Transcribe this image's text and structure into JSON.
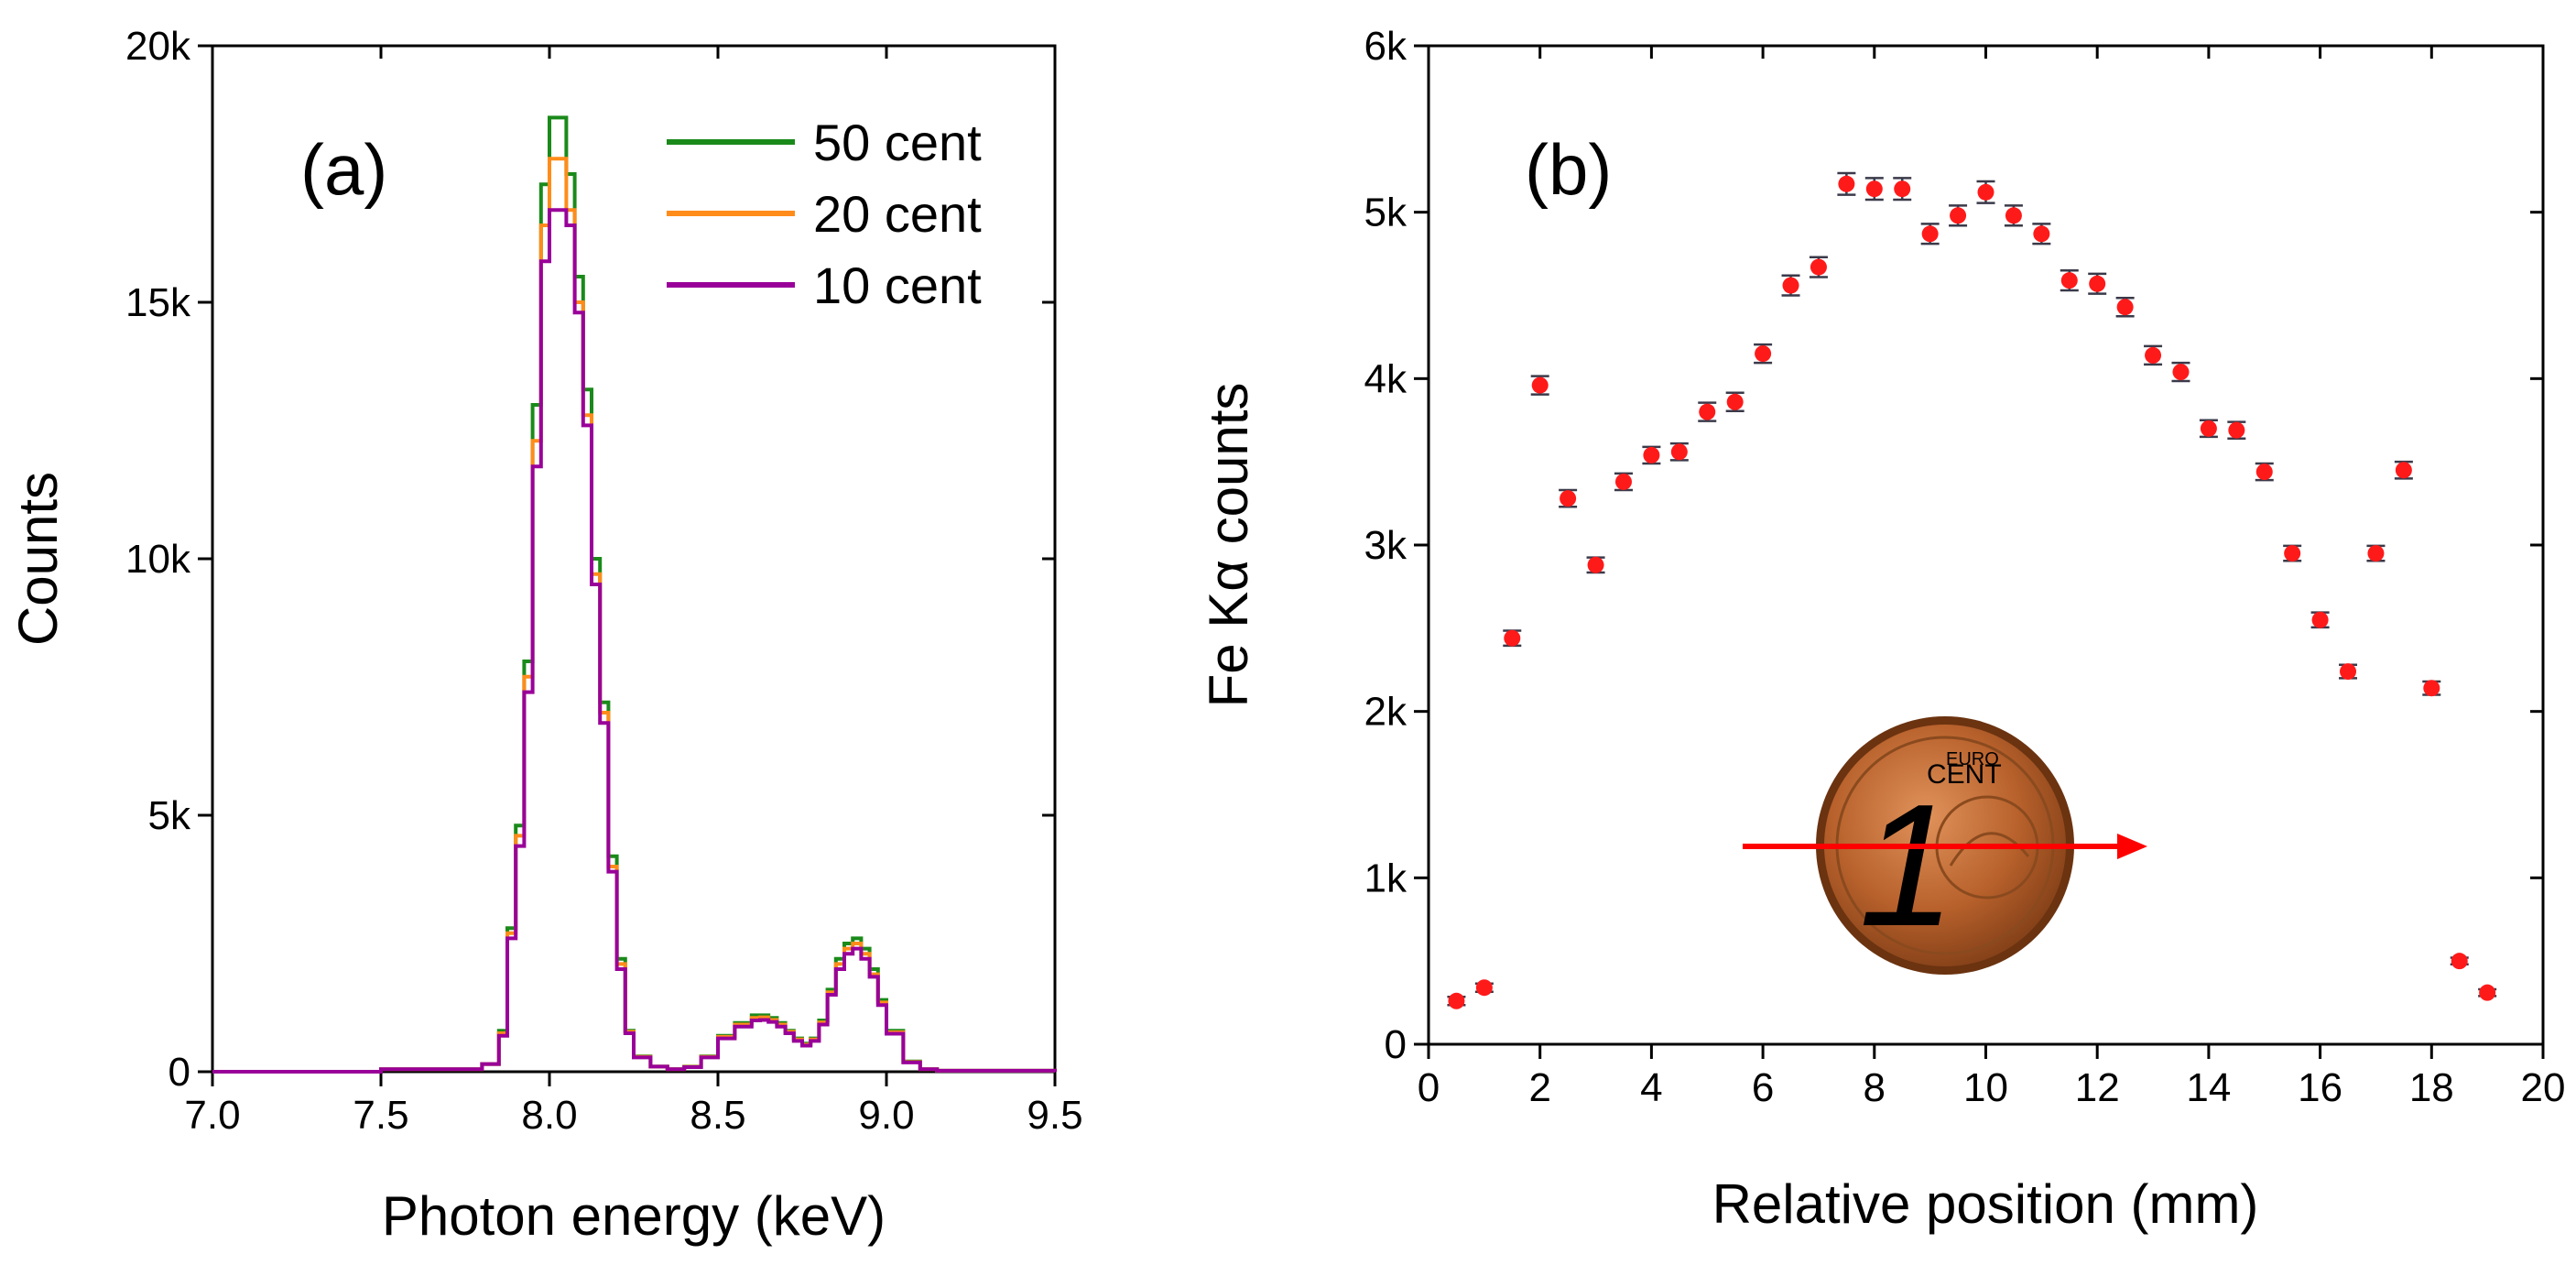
{
  "chart_data": [
    {
      "panel": "(a)",
      "type": "line",
      "step": true,
      "xlabel": "Photon energy (keV)",
      "ylabel": "Counts",
      "xlim": [
        7.0,
        9.5
      ],
      "ylim": [
        0,
        20000
      ],
      "xticks": [
        7.0,
        7.5,
        8.0,
        8.5,
        9.0,
        9.5
      ],
      "xtick_labels": [
        "7.0",
        "7.5",
        "8.0",
        "8.5",
        "9.0",
        "9.5"
      ],
      "yticks": [
        0,
        5000,
        10000,
        15000,
        20000
      ],
      "ytick_labels": [
        "0",
        "5k",
        "10k",
        "15k",
        "20k"
      ],
      "legend_position": "top-right",
      "x": [
        7.0,
        7.5,
        7.8,
        7.85,
        7.875,
        7.9,
        7.925,
        7.95,
        7.975,
        8.0,
        8.025,
        8.05,
        8.075,
        8.1,
        8.125,
        8.15,
        8.175,
        8.2,
        8.225,
        8.25,
        8.3,
        8.35,
        8.4,
        8.45,
        8.5,
        8.55,
        8.6,
        8.625,
        8.65,
        8.675,
        8.7,
        8.725,
        8.75,
        8.775,
        8.8,
        8.825,
        8.85,
        8.875,
        8.9,
        8.925,
        8.95,
        8.975,
        9.0,
        9.05,
        9.1,
        9.15,
        9.5
      ],
      "series": [
        {
          "name": "50 cent",
          "color": "#1a8a1a",
          "values": [
            0,
            50,
            150,
            800,
            2800,
            4800,
            8000,
            13000,
            17300,
            18600,
            18600,
            17500,
            15500,
            13300,
            10000,
            7200,
            4200,
            2200,
            800,
            300,
            100,
            50,
            100,
            300,
            700,
            950,
            1100,
            1100,
            1050,
            950,
            800,
            650,
            550,
            650,
            1000,
            1600,
            2200,
            2500,
            2600,
            2400,
            2000,
            1400,
            800,
            200,
            50,
            20,
            0
          ]
        },
        {
          "name": "20 cent",
          "color": "#ff8c1a",
          "values": [
            0,
            50,
            150,
            750,
            2700,
            4600,
            7700,
            12300,
            16500,
            17800,
            17800,
            16800,
            15000,
            12800,
            9700,
            7000,
            4000,
            2100,
            780,
            290,
            100,
            50,
            95,
            290,
            680,
            920,
            1050,
            1060,
            1010,
            920,
            780,
            630,
            530,
            630,
            960,
            1550,
            2100,
            2400,
            2500,
            2300,
            1900,
            1350,
            770,
            190,
            50,
            20,
            0
          ]
        },
        {
          "name": "10 cent",
          "color": "#990099",
          "values": [
            0,
            50,
            150,
            700,
            2600,
            4400,
            7400,
            11800,
            15800,
            16800,
            16800,
            16500,
            14800,
            12600,
            9500,
            6800,
            3900,
            2000,
            750,
            280,
            100,
            50,
            90,
            280,
            650,
            880,
            1000,
            1010,
            970,
            880,
            750,
            600,
            510,
            600,
            920,
            1500,
            2000,
            2300,
            2400,
            2200,
            1850,
            1300,
            740,
            180,
            50,
            20,
            0
          ]
        }
      ]
    },
    {
      "panel": "(b)",
      "type": "scatter",
      "error_bars": true,
      "xlabel": "Relative position (mm)",
      "ylabel": "Fe Kα counts",
      "xlim": [
        0,
        20
      ],
      "ylim": [
        0,
        6000
      ],
      "xticks": [
        0,
        2,
        4,
        6,
        8,
        10,
        12,
        14,
        16,
        18,
        20
      ],
      "xtick_labels": [
        "0",
        "2",
        "4",
        "6",
        "8",
        "10",
        "12",
        "14",
        "16",
        "18",
        "20"
      ],
      "yticks": [
        0,
        1000,
        2000,
        3000,
        4000,
        5000,
        6000
      ],
      "ytick_labels": [
        "0",
        "1k",
        "2k",
        "3k",
        "4k",
        "5k",
        "6k"
      ],
      "marker_color": "#ff1a1a",
      "errorbar_color": "#3a3a4a",
      "annotation": "euro coin photo with red arrow (left to right)",
      "coin_text": {
        "top": "EURO",
        "middle": "CENT",
        "numeral": "1"
      },
      "x": [
        0.5,
        1,
        1.5,
        2,
        2.5,
        3,
        3.5,
        4,
        4.5,
        5,
        5.5,
        6,
        6.5,
        7,
        7.5,
        8,
        8.5,
        9,
        9.5,
        10,
        10.5,
        11,
        11.5,
        12,
        12.5,
        13,
        13.5,
        14,
        14.5,
        15,
        15.5,
        16,
        16.5,
        17,
        17.5,
        18,
        18.5,
        19
      ],
      "y": [
        260,
        340,
        2440,
        3960,
        3280,
        2880,
        3380,
        3540,
        3560,
        3800,
        3860,
        4150,
        4560,
        4670,
        5170,
        5140,
        5140,
        4870,
        4980,
        5120,
        4980,
        4870,
        4590,
        4570,
        4430,
        4140,
        4040,
        3700,
        3690,
        3440,
        2950,
        2550,
        2240,
        2950,
        3450,
        2140,
        500,
        310
      ],
      "err": [
        25,
        25,
        45,
        55,
        50,
        45,
        50,
        50,
        50,
        55,
        55,
        55,
        60,
        60,
        65,
        65,
        65,
        60,
        60,
        65,
        60,
        60,
        60,
        60,
        55,
        55,
        55,
        50,
        50,
        50,
        45,
        45,
        40,
        45,
        50,
        40,
        20,
        20
      ]
    }
  ]
}
